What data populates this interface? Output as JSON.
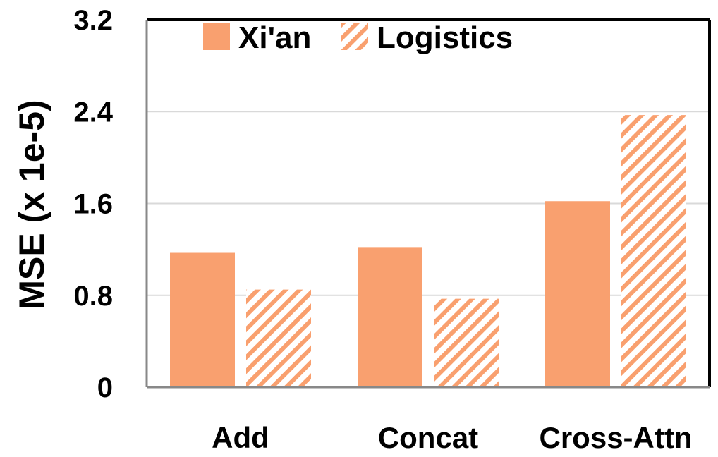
{
  "chart_data": {
    "type": "bar",
    "categories": [
      "Add",
      "Concat",
      "Cross-Attn"
    ],
    "series": [
      {
        "name": "Xi'an",
        "values": [
          1.17,
          1.22,
          1.62
        ],
        "color": "#f9a06f",
        "pattern": "solid"
      },
      {
        "name": "Logistics",
        "values": [
          0.85,
          0.77,
          2.37
        ],
        "color": "#f9a06f",
        "pattern": "diagonal-hatch"
      }
    ],
    "title": "",
    "xlabel": "",
    "ylabel": "MSE (x 1e-5)",
    "ylim": [
      0,
      3.2
    ],
    "yticks": [
      "0",
      "0.8",
      "1.6",
      "2.4",
      "3.2"
    ],
    "grid": true,
    "legend": "top"
  }
}
